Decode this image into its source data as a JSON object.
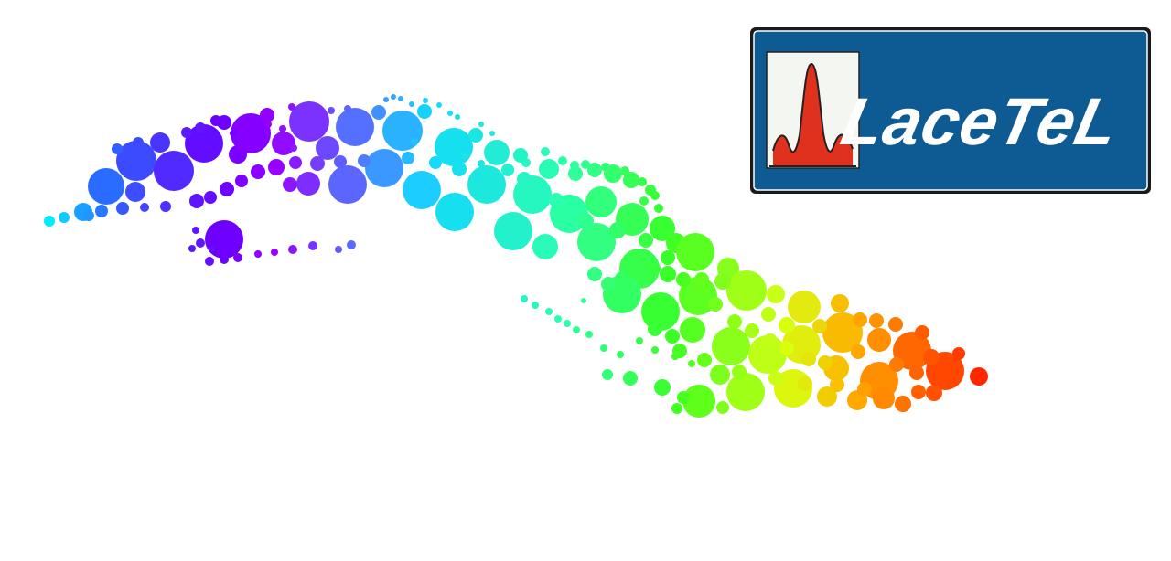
{
  "logo": {
    "text": "LaceTeL",
    "icon": "signal-peak-icon",
    "colors": {
      "panel": "#0e5b94",
      "frame": "#1a1a1a",
      "inner_border": "#ffffff",
      "text": "#ffffff",
      "icon_bg": "#f4f7f1",
      "icon_fill": "#e0301e",
      "icon_stroke": "#222222"
    }
  },
  "map": {
    "subject": "Cuba",
    "style": "rainbow dot mosaic",
    "palette": [
      "#00ffff",
      "#2f64ff",
      "#6a00ff",
      "#9a00ff",
      "#14d8ff",
      "#2bffb0",
      "#3aff24",
      "#d8ff10",
      "#ffb000",
      "#ff5a00",
      "#ff1a00"
    ]
  }
}
